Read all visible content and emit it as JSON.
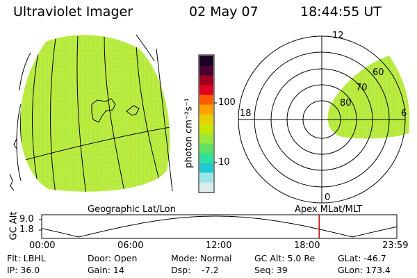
{
  "header": {
    "instrument": "Ultraviolet Imager",
    "date": "02 May 07",
    "time": "18:44:55 UT"
  },
  "colorbar": {
    "ticks": [
      "100",
      "10"
    ],
    "unit_label": "photon cm⁻²s⁻¹",
    "colors": [
      "#1a0022",
      "#4a0030",
      "#a00020",
      "#e00020",
      "#ff5a00",
      "#ffa000",
      "#e8d000",
      "#c8e800",
      "#9ae83a",
      "#62e060",
      "#30e0a0",
      "#20c8d0",
      "#9ae6e8",
      "#dcecec"
    ]
  },
  "panels": {
    "geo_label": "Geographic Lat/Lon",
    "polar_label": "Apex MLat/MLT",
    "polar_hours": [
      "12",
      "18",
      "6",
      "0"
    ],
    "polar_lat_labels": [
      "60",
      "70",
      "80"
    ]
  },
  "altitude_strip": {
    "axis_label": "GC Alt",
    "y_ticks": [
      "9.0",
      "1.8"
    ],
    "x_ticks": [
      "00:00",
      "06:00",
      "12:00",
      "18:00",
      "23:59"
    ],
    "current_time_marker_hours": 18.75
  },
  "info_rows": [
    [
      "Flt: LBHL",
      "Door: Open",
      "Mode: Normal",
      "GC Alt: 5.0 Re",
      "GLat: -46.7"
    ],
    [
      "IP: 36.0",
      "Gain: 14",
      "Dsp:    -7.2",
      "Seq: 39",
      "GLon: 173.4"
    ]
  ]
}
